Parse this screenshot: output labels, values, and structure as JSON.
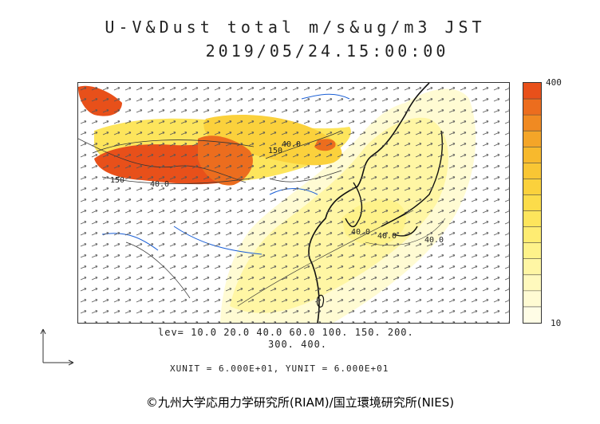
{
  "title": "U-V&Dust total m/s&ug/m3 JST",
  "datetime": "2019/05/24.15:00:00",
  "colorbar": {
    "max_label": "400",
    "min_label": "10",
    "colors": [
      "#e8501a",
      "#ec6d1e",
      "#f08a22",
      "#f4a528",
      "#f7b92d",
      "#f9c634",
      "#fbd13c",
      "#fcdc4a",
      "#fde55c",
      "#feec72",
      "#fef28a",
      "#fff6a4",
      "#fff9bd",
      "#fffbd3",
      "#fffde6"
    ]
  },
  "levels_line1": "lev= 10.0 20.0 40.0 60.0 100. 150. 200.",
  "levels_line2": "300. 400.",
  "units_line": "XUNIT = 6.000E+01, YUNIT = 6.000E+01",
  "copyright": "©九州大学応用力学研究所(RIAM)/国立環境研究所(NIES)",
  "map": {
    "contour_labels": [
      "40.0",
      "150",
      "150",
      "40.0",
      "40.0",
      "40.0",
      "40.0"
    ]
  }
}
